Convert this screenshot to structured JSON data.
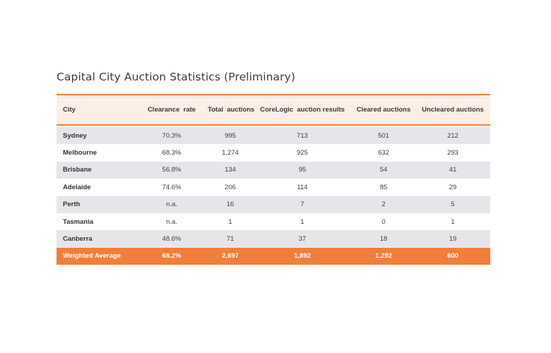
{
  "title": "Capital City Auction Statistics (Preliminary)",
  "headers": [
    "City",
    "Clearance  rate",
    "Total  auctions",
    "CoreLogic  auction results",
    "Cleared auctions",
    "Uncleared auctions"
  ],
  "rows": [
    [
      "Sydney",
      "70.3%",
      "995",
      "713",
      "501",
      "212"
    ],
    [
      "Melbourne",
      "68.3%",
      "1,274",
      "925",
      "632",
      "293"
    ],
    [
      "Brisbane",
      "56.8%",
      "134",
      "95",
      "54",
      "41"
    ],
    [
      "Adelaide",
      "74.6%",
      "206",
      "114",
      "85",
      "29"
    ],
    [
      "Perth",
      "n.a.",
      "16",
      "7",
      "2",
      "5"
    ],
    [
      "Tasmania",
      "n.a.",
      "1",
      "1",
      "0",
      "1"
    ],
    [
      "Canberra",
      "48.6%",
      "71",
      "37",
      "18",
      "19"
    ]
  ],
  "footer": [
    "Weighted Average",
    "68.2%",
    "2,697",
    "1,892",
    "1,292",
    "600"
  ],
  "colors": {
    "accent": "#f07f3c",
    "header_bg": "#fdeee7",
    "row_shade": "#e6e6ea"
  }
}
